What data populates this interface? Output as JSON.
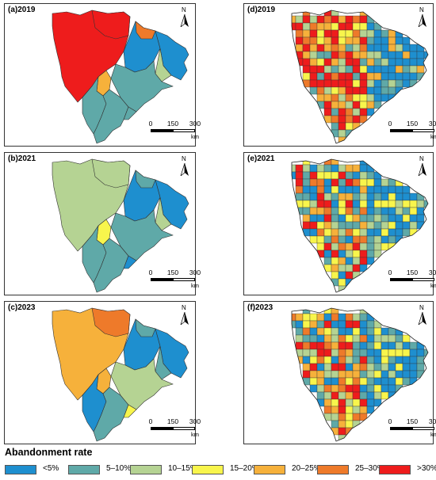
{
  "panels": [
    {
      "label": "(a)2019"
    },
    {
      "label": "(b)2021"
    },
    {
      "label": "(c)2023"
    },
    {
      "label": "(d)2019"
    },
    {
      "label": "(e)2021"
    },
    {
      "label": "(f)2023"
    }
  ],
  "north_label": "N",
  "scale": {
    "ticks": [
      "0",
      "150",
      "300"
    ],
    "unit": "km"
  },
  "legend": {
    "title": "Abandonment rate",
    "items": [
      {
        "label": "<5%",
        "color": "#1e8fcf"
      },
      {
        "label": "5–10%",
        "color": "#5fa9a8"
      },
      {
        "label": "10–15%",
        "color": "#b5d393"
      },
      {
        "label": "15–20%",
        "color": "#f8f54c"
      },
      {
        "label": "20–25%",
        "color": "#f6b13b"
      },
      {
        "label": "25–30%",
        "color": "#ee7a2a"
      },
      {
        "label": ">30%",
        "color": "#ee1c1c"
      }
    ]
  },
  "region_classes": {
    "a": [
      "red",
      "red",
      "orange-light",
      "teal",
      "teal",
      "blue",
      "blue",
      "green",
      "orange",
      "teal",
      "teal"
    ],
    "b": [
      "green",
      "green",
      "yellow",
      "teal",
      "teal",
      "blue",
      "blue",
      "green",
      "teal",
      "teal",
      "blue"
    ],
    "c": [
      "orange-light",
      "orange",
      "orange-light",
      "blue",
      "teal",
      "blue",
      "blue",
      "teal",
      "teal",
      "green",
      "yellow"
    ]
  }
}
